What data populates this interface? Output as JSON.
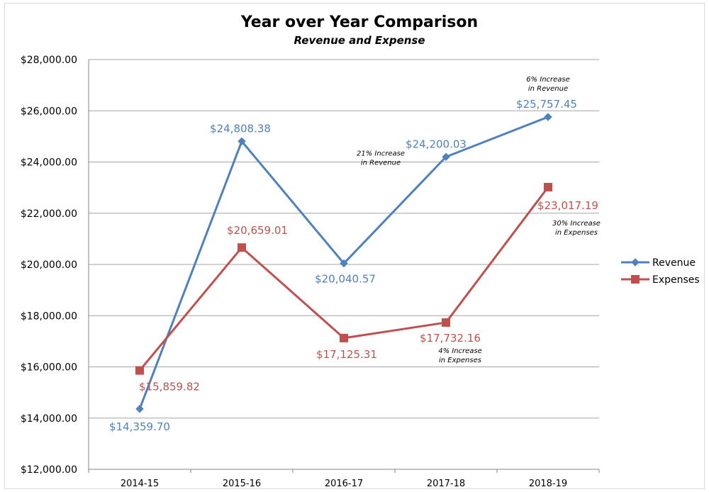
{
  "chart_data": {
    "type": "line",
    "title": "Year over Year Comparison",
    "subtitle": "Revenue and Expense",
    "categories": [
      "2014-15",
      "2015-16",
      "2016-17",
      "2017-18",
      "2018-19"
    ],
    "ylim": [
      12000,
      28000
    ],
    "ytick_values": [
      12000,
      14000,
      16000,
      18000,
      20000,
      22000,
      24000,
      26000,
      28000
    ],
    "ytick_labels": [
      "$12,000.00",
      "$14,000.00",
      "$16,000.00",
      "$18,000.00",
      "$20,000.00",
      "$22,000.00",
      "$24,000.00",
      "$26,000.00",
      "$28,000.00"
    ],
    "grid": true,
    "legend_position": "right",
    "series": [
      {
        "name": "Revenue",
        "color": "#4f81bd",
        "marker": "diamond",
        "values": [
          14359.7,
          24808.38,
          20040.57,
          24200.03,
          25757.45
        ],
        "labels": [
          "$14,359.70",
          "$24,808.38",
          "$20,040.57",
          "$24,200.03",
          "$25,757.45"
        ]
      },
      {
        "name": "Expenses",
        "color": "#c0504d",
        "marker": "square",
        "values": [
          15859.82,
          20659.01,
          17125.31,
          17732.16,
          23017.19
        ],
        "labels": [
          "$15,859.82",
          "$20,659.01",
          "$17,125.31",
          "$17,732.16",
          "$23,017.19"
        ]
      }
    ],
    "annotations": [
      {
        "lines": [
          "6% Increase",
          "in Revenue"
        ]
      },
      {
        "lines": [
          "21% Increase",
          "in Revenue"
        ]
      },
      {
        "lines": [
          "30% Increase",
          "in Expenses"
        ]
      },
      {
        "lines": [
          "4% Increase",
          "in Expenses"
        ]
      }
    ]
  }
}
